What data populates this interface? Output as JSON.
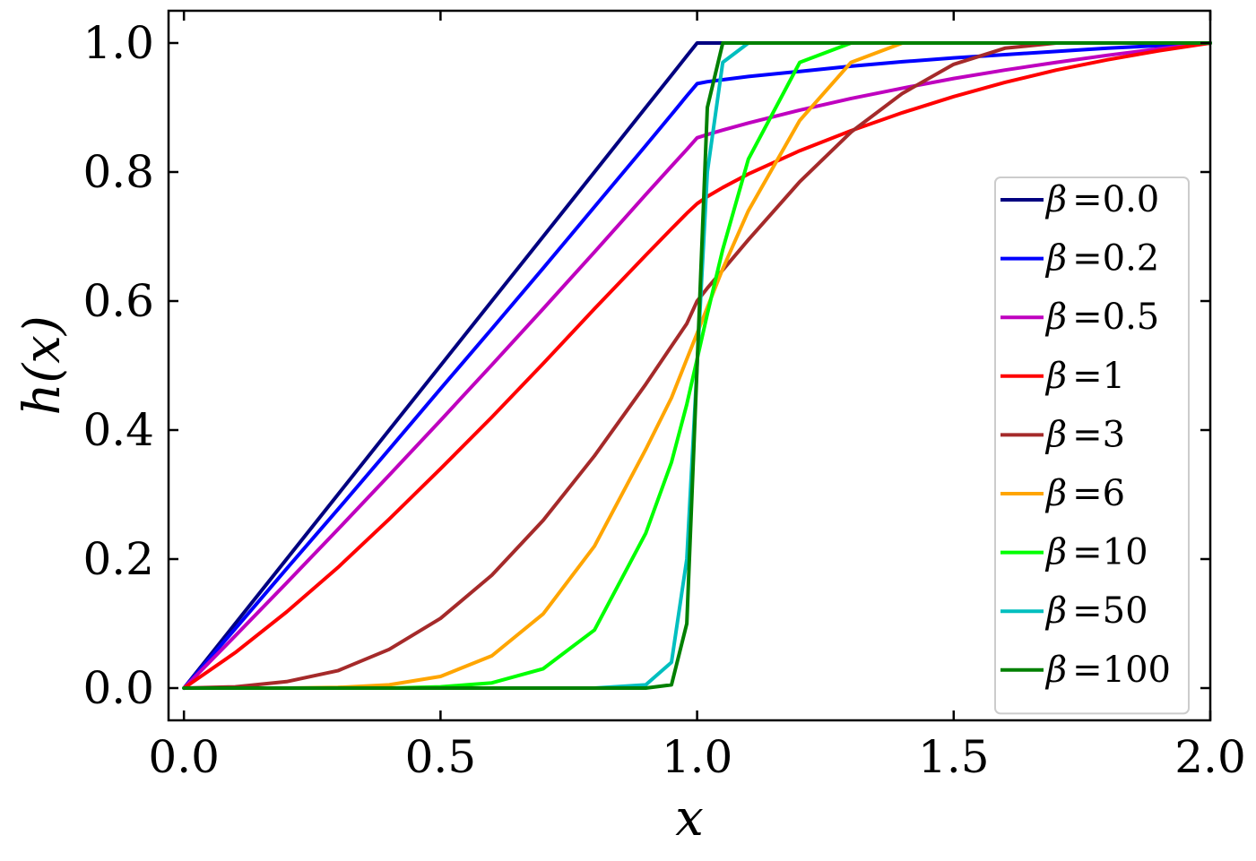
{
  "chart_data": {
    "type": "line",
    "title": "",
    "xlabel": "x",
    "ylabel": "h(x)",
    "xlim": [
      -0.03,
      2.0
    ],
    "ylim": [
      -0.05,
      1.05
    ],
    "xticks": [
      0.0,
      0.5,
      1.0,
      1.5,
      2.0
    ],
    "xtick_labels": [
      "0.0",
      "0.5",
      "1.0",
      "1.5",
      "2.0"
    ],
    "yticks": [
      0.0,
      0.2,
      0.4,
      0.6,
      0.8,
      1.0
    ],
    "ytick_labels": [
      "0.0",
      "0.2",
      "0.4",
      "0.6",
      "0.8",
      "1.0"
    ],
    "grid": false,
    "legend_position": "lower-right",
    "x": [
      0.0,
      0.1,
      0.2,
      0.3,
      0.4,
      0.5,
      0.6,
      0.7,
      0.8,
      0.9,
      0.95,
      0.98,
      1.0,
      1.02,
      1.05,
      1.1,
      1.2,
      1.3,
      1.4,
      1.5,
      1.6,
      1.7,
      1.8,
      1.9,
      2.0
    ],
    "series": [
      {
        "name": "β =0.0",
        "label_sym": "β",
        "label_val": "=0.0",
        "color": "#000080",
        "values": [
          0.0,
          0.1,
          0.2,
          0.3,
          0.4,
          0.5,
          0.6,
          0.7,
          0.8,
          0.9,
          0.95,
          0.98,
          1.0,
          1.0,
          1.0,
          1.0,
          1.0,
          1.0,
          1.0,
          1.0,
          1.0,
          1.0,
          1.0,
          1.0,
          1.0
        ]
      },
      {
        "name": "β =0.2",
        "label_sym": "β",
        "label_val": "=0.2",
        "color": "#0000ff",
        "values": [
          0.0,
          0.092,
          0.185,
          0.277,
          0.37,
          0.464,
          0.557,
          0.651,
          0.746,
          0.841,
          0.889,
          0.918,
          0.937,
          0.94,
          0.943,
          0.948,
          0.956,
          0.964,
          0.971,
          0.977,
          0.982,
          0.987,
          0.992,
          0.996,
          1.0
        ]
      },
      {
        "name": "β =0.5",
        "label_sym": "β",
        "label_val": "=0.5",
        "color": "#bf00bf",
        "values": [
          0.0,
          0.081,
          0.163,
          0.246,
          0.33,
          0.415,
          0.501,
          0.588,
          0.676,
          0.765,
          0.809,
          0.835,
          0.853,
          0.858,
          0.865,
          0.876,
          0.896,
          0.914,
          0.93,
          0.945,
          0.958,
          0.97,
          0.981,
          0.991,
          1.0
        ]
      },
      {
        "name": "β =1",
        "label_sym": "β",
        "label_val": "=1",
        "color": "#ff0000",
        "values": [
          0.0,
          0.055,
          0.118,
          0.187,
          0.262,
          0.34,
          0.42,
          0.503,
          0.588,
          0.671,
          0.712,
          0.736,
          0.751,
          0.762,
          0.776,
          0.797,
          0.833,
          0.864,
          0.892,
          0.917,
          0.939,
          0.958,
          0.974,
          0.988,
          1.0
        ]
      },
      {
        "name": "β =3",
        "label_sym": "β",
        "label_val": "=3",
        "color": "#a52a2a",
        "values": [
          0.0,
          0.002,
          0.01,
          0.027,
          0.06,
          0.108,
          0.175,
          0.26,
          0.36,
          0.471,
          0.53,
          0.565,
          0.6,
          0.62,
          0.648,
          0.695,
          0.785,
          0.862,
          0.922,
          0.967,
          0.992,
          1.0,
          1.0,
          1.0,
          1.0
        ]
      },
      {
        "name": "β =6",
        "label_sym": "β",
        "label_val": "=6",
        "color": "#ffa500",
        "values": [
          0.0,
          0.0,
          0.0,
          0.001,
          0.005,
          0.018,
          0.05,
          0.115,
          0.22,
          0.37,
          0.45,
          0.51,
          0.55,
          0.59,
          0.65,
          0.74,
          0.88,
          0.97,
          1.0,
          1.0,
          1.0,
          1.0,
          1.0,
          1.0,
          1.0
        ]
      },
      {
        "name": "β =10",
        "label_sym": "β",
        "label_val": "=10",
        "color": "#00ff00",
        "values": [
          0.0,
          0.0,
          0.0,
          0.0,
          0.0,
          0.002,
          0.008,
          0.03,
          0.09,
          0.24,
          0.35,
          0.44,
          0.51,
          0.58,
          0.68,
          0.82,
          0.97,
          1.0,
          1.0,
          1.0,
          1.0,
          1.0,
          1.0,
          1.0,
          1.0
        ]
      },
      {
        "name": "β =50",
        "label_sym": "β",
        "label_val": "=50",
        "color": "#00bfbf",
        "values": [
          0.0,
          0.0,
          0.0,
          0.0,
          0.0,
          0.0,
          0.0,
          0.0,
          0.0,
          0.005,
          0.04,
          0.2,
          0.5,
          0.8,
          0.97,
          1.0,
          1.0,
          1.0,
          1.0,
          1.0,
          1.0,
          1.0,
          1.0,
          1.0,
          1.0
        ]
      },
      {
        "name": "β =100",
        "label_sym": "β",
        "label_val": "=100",
        "color": "#008000",
        "values": [
          0.0,
          0.0,
          0.0,
          0.0,
          0.0,
          0.0,
          0.0,
          0.0,
          0.0,
          0.0,
          0.005,
          0.1,
          0.5,
          0.9,
          1.0,
          1.0,
          1.0,
          1.0,
          1.0,
          1.0,
          1.0,
          1.0,
          1.0,
          1.0,
          1.0
        ]
      }
    ]
  }
}
